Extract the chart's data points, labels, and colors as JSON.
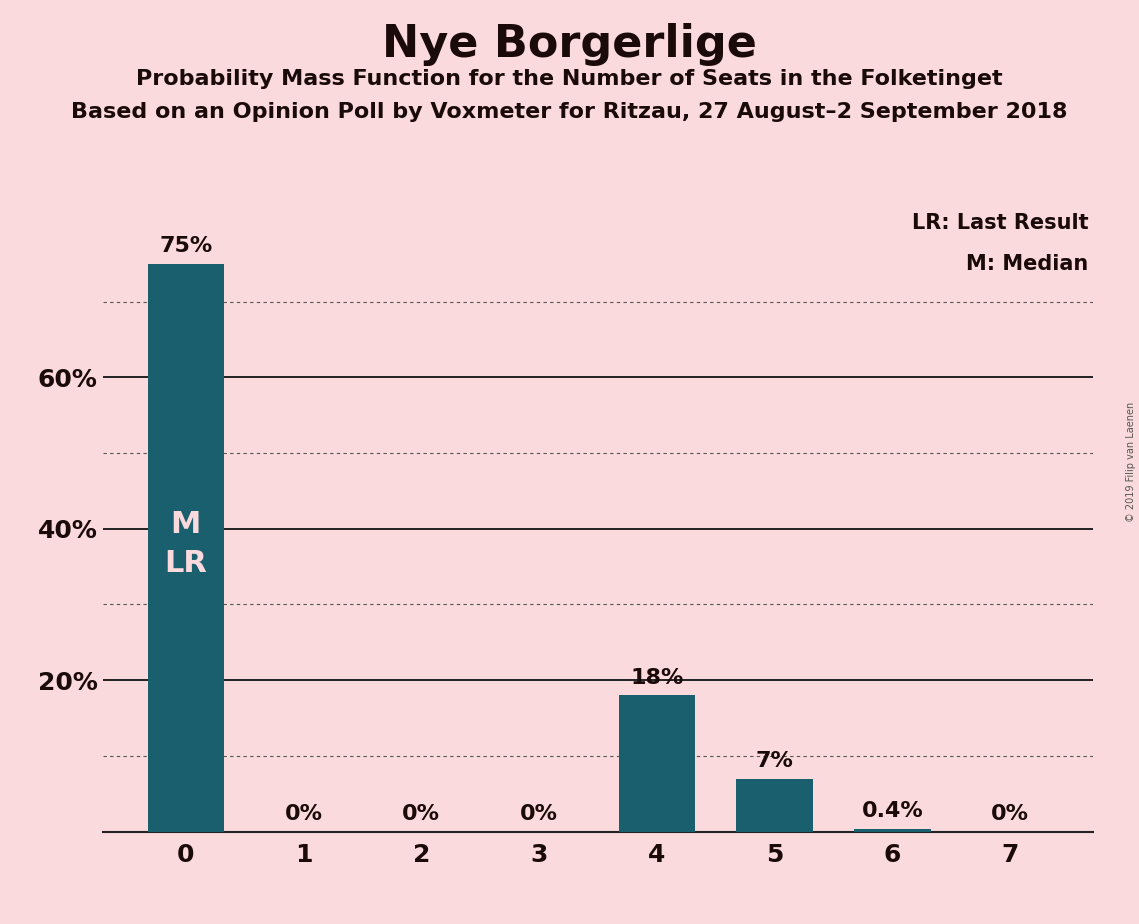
{
  "title": "Nye Borgerlige",
  "subtitle1": "Probability Mass Function for the Number of Seats in the Folketinget",
  "subtitle2": "Based on an Opinion Poll by Voxmeter for Ritzau, 27 August–2 September 2018",
  "copyright": "© 2019 Filip van Laenen",
  "categories": [
    0,
    1,
    2,
    3,
    4,
    5,
    6,
    7
  ],
  "values": [
    75.0,
    0.0,
    0.0,
    0.0,
    18.0,
    7.0,
    0.4,
    0.0
  ],
  "bar_labels": [
    "75%",
    "0%",
    "0%",
    "0%",
    "18%",
    "7%",
    "0.4%",
    "0%"
  ],
  "bar_color": "#1a5f6e",
  "background_color": "#fadadd",
  "title_color": "#1a0a0a",
  "text_color": "#1a0a0a",
  "bar_label_color_inside": "#fadadd",
  "bar_label_color_outside": "#1a0a0a",
  "ylabel_ticks": [
    20,
    40,
    60
  ],
  "ylabel_labels": [
    "20%",
    "40%",
    "60%"
  ],
  "ylim": [
    0,
    83
  ],
  "legend_lr": "LR: Last Result",
  "legend_m": "M: Median",
  "dotted_lines": [
    10,
    30,
    50,
    70
  ],
  "solid_lines": [
    20,
    40,
    60
  ],
  "watermark_fontsize": 7,
  "title_fontsize": 32,
  "subtitle_fontsize": 16,
  "tick_fontsize": 18,
  "label_fontsize": 16,
  "legend_fontsize": 15,
  "mlr_fontsize": 22
}
